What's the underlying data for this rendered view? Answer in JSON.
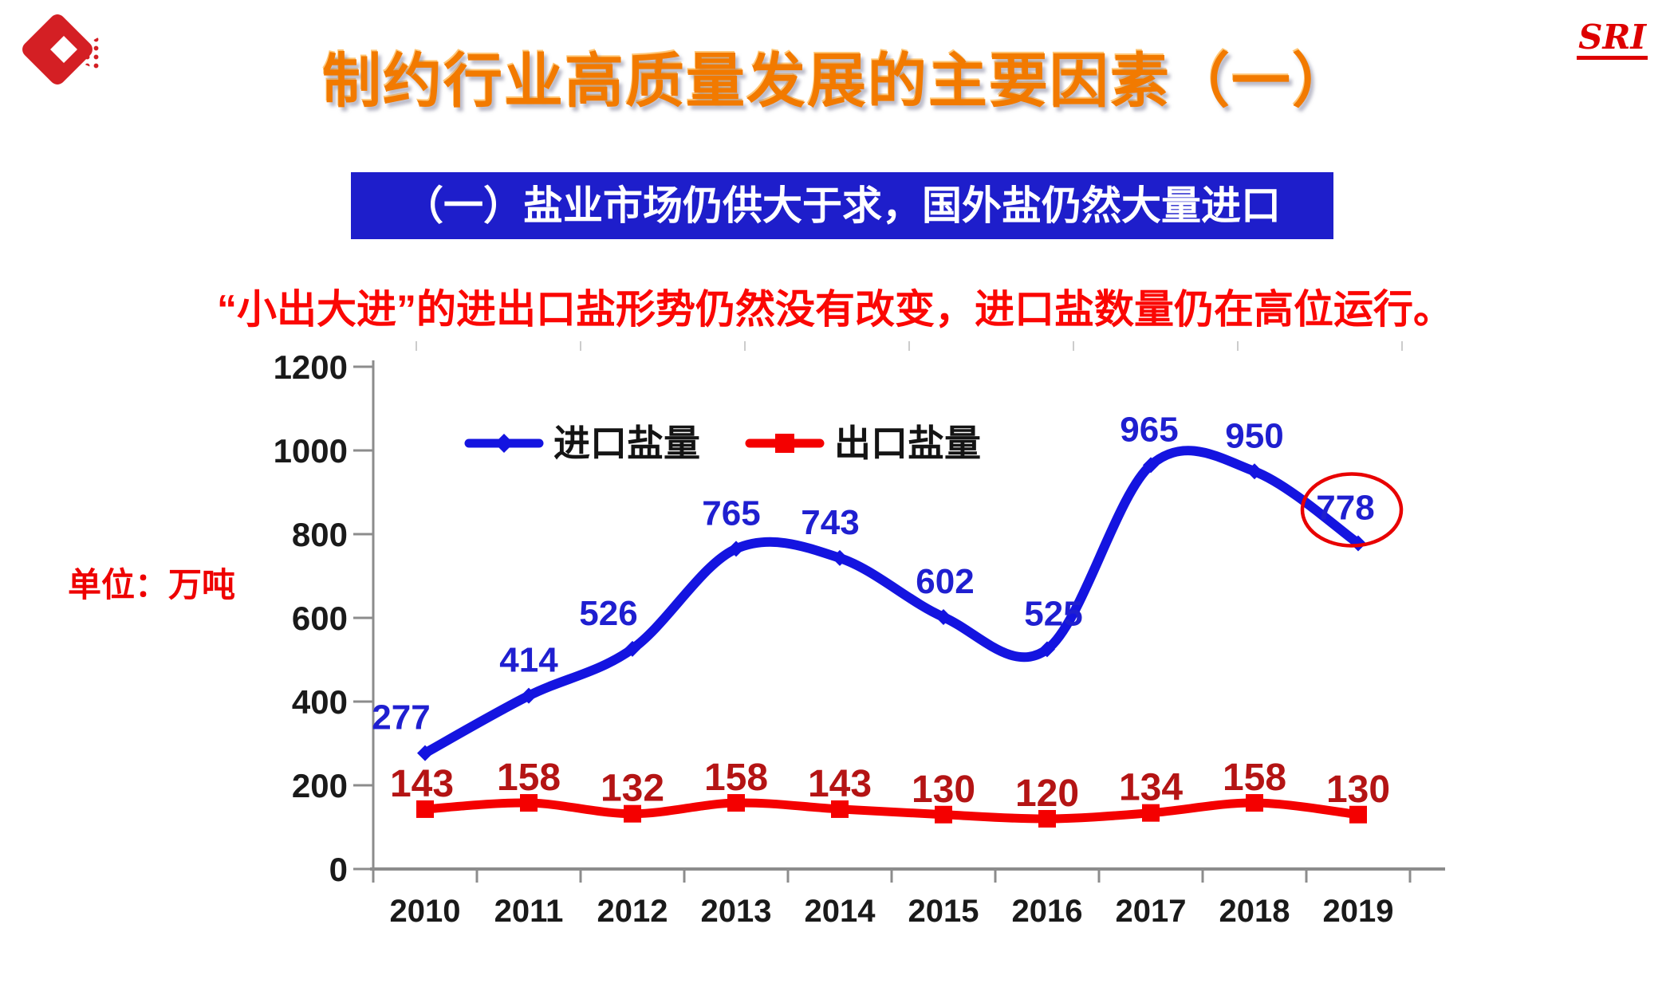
{
  "header": {
    "logo_name": "red-diamond-logo",
    "title": "制约行业高质量发展的主要因素（一）",
    "brand": "SRI"
  },
  "banner": {
    "text": "（一）盐业市场仍供大于求，国外盐仍然大量进口"
  },
  "subtitle": {
    "text": "“小出大进”的进出口盐形势仍然没有改变，进口盐数量仍在高位运行。"
  },
  "unit_label": "单位：万吨",
  "colors": {
    "banner_bg": "#1e1ecb",
    "banner_text": "#ffffff",
    "title_orange": "#f27a00",
    "accent_red": "#ee0000",
    "axis_gray": "#8c8c8c",
    "tick_label": "#1a1a1a",
    "legend_text": "#141414",
    "annotation_red": "#e80000"
  },
  "chart_data": {
    "type": "line",
    "title": "",
    "xlabel": "",
    "ylabel": "单位：万吨",
    "categories": [
      "2010",
      "2011",
      "2012",
      "2013",
      "2014",
      "2015",
      "2016",
      "2017",
      "2018",
      "2019"
    ],
    "series": [
      {
        "id": "import-salt",
        "name": "进口盐量",
        "color": "#1414e0",
        "label_color": "#1f1fd0",
        "marker": "diamond",
        "values": [
          277,
          414,
          526,
          765,
          743,
          602,
          525,
          965,
          950,
          778
        ]
      },
      {
        "id": "export-salt",
        "name": "出口盐量",
        "color": "#f40000",
        "label_color": "#b41414",
        "marker": "square",
        "values": [
          143,
          158,
          132,
          158,
          143,
          130,
          120,
          134,
          158,
          130
        ]
      }
    ],
    "ylim": [
      0,
      1200
    ],
    "ytick_step": 200,
    "grid": false,
    "legend_position": "top-inside",
    "annotation": {
      "shape": "ellipse",
      "series_id": "import-salt",
      "category": "2019",
      "value": 778,
      "color": "#e80000"
    }
  }
}
